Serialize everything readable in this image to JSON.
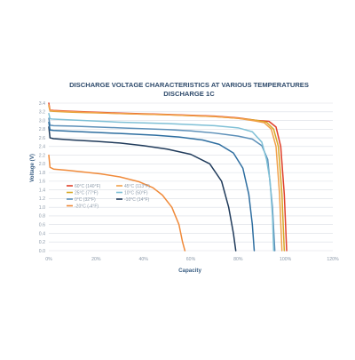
{
  "chart_data": {
    "type": "line",
    "title": "DISCHARGE VOLTAGE CHARACTERISTICS AT VARIOUS TEMPERATURES",
    "subtitle": "DISCHARGE 1C",
    "xlabel": "Capacity",
    "ylabel": "Voltage (V)",
    "xlim": [
      0,
      120
    ],
    "ylim": [
      0,
      3.4
    ],
    "x_ticks": [
      "0%",
      "20%",
      "40%",
      "60%",
      "80%",
      "100%",
      "120%"
    ],
    "y_ticks": [
      "0.0",
      "0.2",
      "0.4",
      "0.6",
      "0.8",
      "1.0",
      "1.2",
      "1.4",
      "1.6",
      "1.8",
      "2.0",
      "2.2",
      "2.4",
      "2.6",
      "2.8",
      "3.0",
      "3.2",
      "3.4"
    ],
    "grid": true,
    "legend_position": "bottom-left",
    "series": [
      {
        "name": "60°C (140°F)",
        "color": "#e0402a",
        "x": [
          0,
          0.5,
          2,
          10,
          30,
          50,
          70,
          80,
          88,
          93,
          96,
          98,
          99.5,
          100.5
        ],
        "y": [
          3.4,
          3.24,
          3.23,
          3.21,
          3.17,
          3.14,
          3.1,
          3.06,
          3.0,
          2.98,
          2.85,
          2.4,
          1.3,
          0.0
        ]
      },
      {
        "name": "25°C (77°F)",
        "color": "#d7a826",
        "x": [
          0,
          0.5,
          2,
          10,
          30,
          50,
          70,
          80,
          88,
          92,
          95,
          97,
          98.5,
          99.5
        ],
        "y": [
          3.34,
          3.22,
          3.21,
          3.19,
          3.16,
          3.13,
          3.09,
          3.05,
          3.0,
          2.96,
          2.8,
          2.4,
          1.3,
          0.0
        ]
      },
      {
        "name": "0°C (32°F)",
        "color": "#5c8fb8",
        "x": [
          0,
          0.5,
          2,
          10,
          30,
          50,
          60,
          70,
          80,
          86,
          90,
          92.5,
          94.5,
          95.5
        ],
        "y": [
          3.05,
          2.89,
          2.88,
          2.87,
          2.83,
          2.79,
          2.76,
          2.71,
          2.64,
          2.57,
          2.42,
          2.1,
          1.0,
          0.0
        ]
      },
      {
        "name": "-20°C (-4°F)",
        "color": "#f08a3a",
        "x": [
          0,
          0.5,
          2,
          8,
          15,
          22,
          30,
          38,
          44,
          48,
          52,
          55,
          56.5,
          57.5
        ],
        "y": [
          2.2,
          1.92,
          1.88,
          1.85,
          1.81,
          1.77,
          1.7,
          1.59,
          1.45,
          1.28,
          1.0,
          0.6,
          0.2,
          0.0
        ]
      },
      {
        "name": "45°C (113°F)",
        "color": "#f2a04a",
        "x": [
          0,
          0.5,
          2,
          10,
          30,
          50,
          70,
          80,
          87,
          91,
          94,
          96,
          97.5,
          98.5
        ],
        "y": [
          3.36,
          3.23,
          3.22,
          3.2,
          3.16,
          3.13,
          3.09,
          3.05,
          2.99,
          2.95,
          2.8,
          2.4,
          1.3,
          0.0
        ]
      },
      {
        "name": "10°C (50°F)",
        "color": "#7fc0d6",
        "x": [
          0,
          0.5,
          2,
          10,
          30,
          50,
          70,
          80,
          86,
          90,
          92,
          93.5,
          94.5,
          95
        ],
        "y": [
          3.16,
          3.04,
          3.03,
          3.01,
          2.96,
          2.93,
          2.88,
          2.83,
          2.74,
          2.5,
          2.1,
          1.6,
          0.8,
          0.0
        ]
      },
      {
        "name": "-10°C (14°F)",
        "color": "#1f3a5a",
        "x": [
          0,
          0.5,
          2,
          10,
          20,
          30,
          40,
          50,
          60,
          68,
          73,
          76,
          78,
          79
        ],
        "y": [
          2.85,
          2.6,
          2.58,
          2.55,
          2.52,
          2.48,
          2.42,
          2.34,
          2.22,
          2.0,
          1.6,
          1.0,
          0.4,
          0.0
        ]
      },
      {
        "name": "",
        "color": "#2e6ea0",
        "x": [
          0,
          0.5,
          2,
          10,
          30,
          45,
          55,
          65,
          72,
          78,
          82,
          84.5,
          86,
          86.8
        ],
        "y": [
          2.96,
          2.78,
          2.77,
          2.75,
          2.7,
          2.66,
          2.62,
          2.55,
          2.45,
          2.25,
          1.9,
          1.3,
          0.6,
          0.0
        ]
      }
    ]
  }
}
